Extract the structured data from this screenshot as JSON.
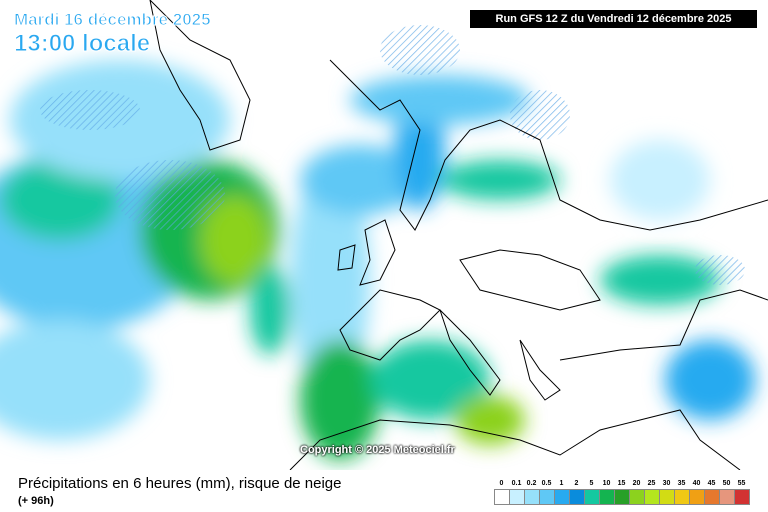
{
  "header": {
    "date": "Mardi 16 décembre 2025",
    "time": "13:00 locale",
    "run": "Run GFS 12 Z du Vendredi 12 décembre 2025"
  },
  "copyright": "Copyright © 2025 Meteociel.fr",
  "footer": {
    "title": "Précipitations en 6 heures (mm), risque de neige",
    "lead": "(+ 96h)"
  },
  "legend": {
    "items": [
      {
        "label": 0,
        "color": "#ffffff"
      },
      {
        "label": 0.1,
        "color": "#c8f0ff"
      },
      {
        "label": 0.2,
        "color": "#96e0fa"
      },
      {
        "label": 0.5,
        "color": "#5fc8f5"
      },
      {
        "label": 1,
        "color": "#28aaf0"
      },
      {
        "label": 2,
        "color": "#0a8cdc"
      },
      {
        "label": 5,
        "color": "#14c8a0"
      },
      {
        "label": 10,
        "color": "#14b450"
      },
      {
        "label": 15,
        "color": "#28a028"
      },
      {
        "label": 20,
        "color": "#8cd21e"
      },
      {
        "label": 25,
        "color": "#b4e61e"
      },
      {
        "label": 30,
        "color": "#d2dc14"
      },
      {
        "label": 35,
        "color": "#f0c814"
      },
      {
        "label": 40,
        "color": "#f0a014"
      },
      {
        "label": 45,
        "color": "#e6782d"
      },
      {
        "label": 50,
        "color": "#e6967d"
      },
      {
        "label": 55,
        "color": "#d23232"
      }
    ]
  }
}
